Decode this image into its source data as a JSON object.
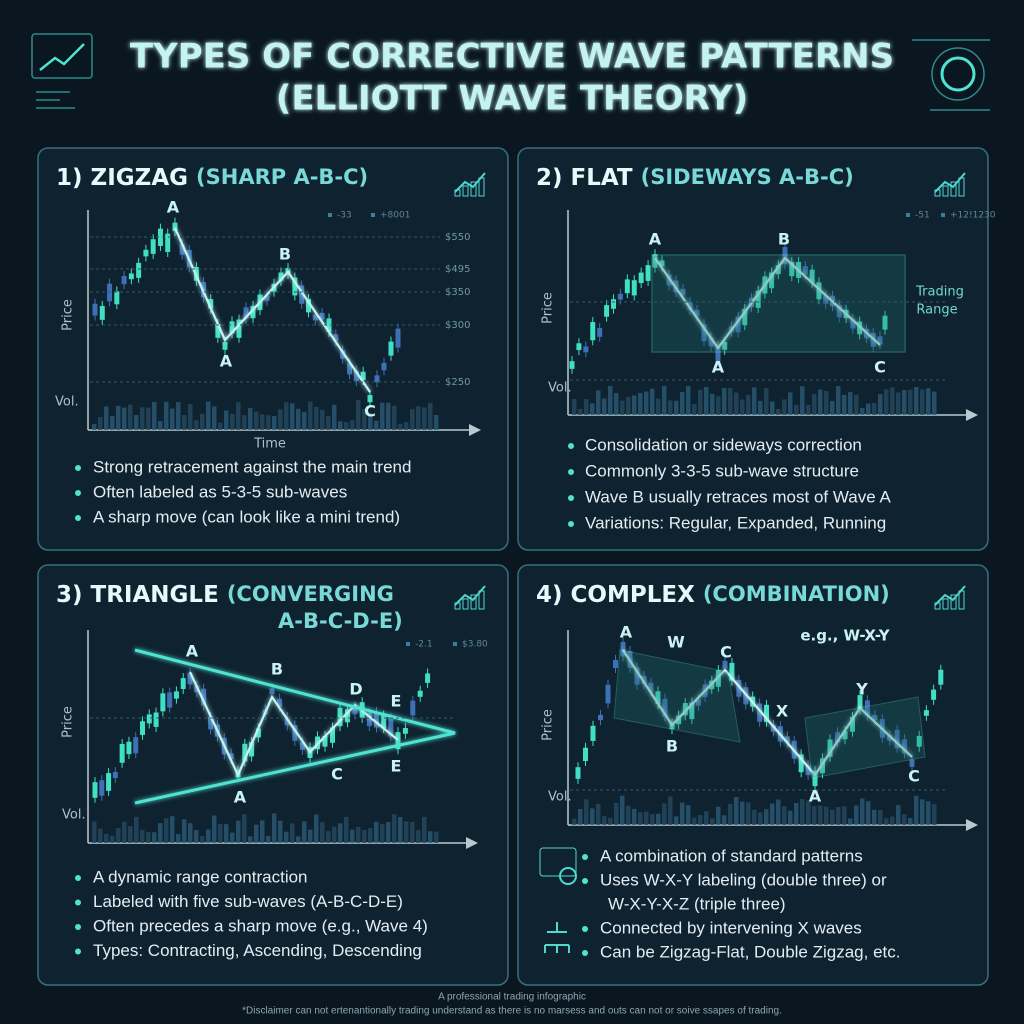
{
  "header": {
    "title": "TYPES OF CORRECTIVE WAVE PATTERNS",
    "subtitle": "(ELLIOTT WAVE THEORY)"
  },
  "panels": [
    {
      "number": "1)",
      "name": "ZIGZAG",
      "qualifier": [
        "(SHARP A-B-C)"
      ],
      "price_axis": "Price",
      "volume_axis": "Vol.",
      "time_axis": "Time",
      "legend": [
        "-33",
        "+8001"
      ],
      "price_labels": [
        "$550",
        "$495",
        "$350",
        "$300",
        "$250"
      ],
      "wave_labels": [
        "A",
        "A",
        "B",
        "C"
      ],
      "bullets": [
        [
          "Strong retracement against the main trend"
        ],
        [
          "Often labeled as 5-3-5 sub-waves"
        ],
        [
          "A sharp move (can look like a mini trend)"
        ]
      ]
    },
    {
      "number": "2)",
      "name": "FLAT",
      "qualifier": [
        "(SIDEWAYS A-B-C)"
      ],
      "price_axis": "Price",
      "volume_axis": "Vol.",
      "legend": [
        "-51",
        "+12!1230"
      ],
      "range_label": [
        "Trading",
        "Range"
      ],
      "wave_labels": [
        "A",
        "B",
        "A",
        "C"
      ],
      "bullets": [
        [
          "Consolidation or sideways correction"
        ],
        [
          "Commonly 3-3-5 sub-wave structure"
        ],
        [
          "Wave B usually retraces most of Wave A"
        ],
        [
          "Variations: Regular, Expanded, Running"
        ]
      ]
    },
    {
      "number": "3)",
      "name": "TRIANGLE",
      "qualifier": [
        "(CONVERGING",
        "A-B-C-D-E)"
      ],
      "price_axis": "Price",
      "volume_axis": "Vol.",
      "legend": [
        "-2.1",
        "$3.80"
      ],
      "wave_labels": [
        "A",
        "B",
        "D",
        "E",
        "A",
        "C",
        "E"
      ],
      "bullets": [
        [
          "A dynamic range contraction"
        ],
        [
          "Labeled with five sub-waves (A-B-C-D-E)"
        ],
        [
          "Often precedes a sharp move (e.g., Wave 4)"
        ],
        [
          "Types: Contracting, Ascending, Descending"
        ]
      ]
    },
    {
      "number": "4)",
      "name": "COMPLEX",
      "qualifier": [
        "(COMBINATION)"
      ],
      "price_axis": "Price",
      "volume_axis": "Vol.",
      "annotation": "e.g., W-X-Y",
      "wave_labels": [
        "A",
        "W",
        "C",
        "B",
        "X",
        "Y",
        "A",
        "C"
      ],
      "bullets": [
        [
          "A combination of standard patterns"
        ],
        [
          "Uses W-X-Y labeling (double three) or",
          "W-X-Y-X-Z (triple three)"
        ],
        [
          "Connected by intervening X waves"
        ],
        [
          "Can be Zigzag-Flat, Double Zigzag, etc."
        ]
      ]
    }
  ],
  "footer": {
    "line1": "A professional trading infographic",
    "line2": "*Disclaimer can not ertenantionally trading understand as there is no marsess and outs can not or soive ssapes of trading."
  }
}
